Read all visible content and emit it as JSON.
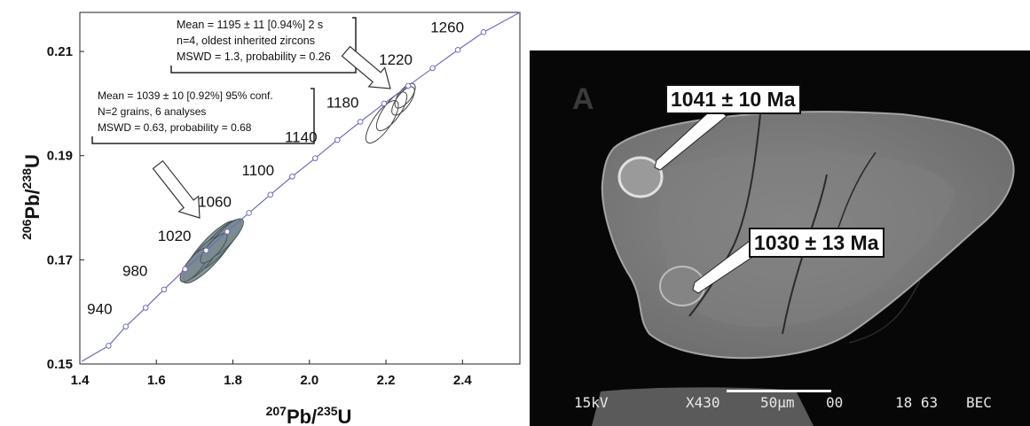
{
  "chart_data": {
    "type": "scatter",
    "title": "",
    "xlabel": "207Pb/235U",
    "ylabel": "206Pb/238U",
    "xlabel_parts": {
      "sup": "207",
      "base": "Pb/",
      "sup2": "235",
      "base2": "U"
    },
    "ylabel_parts": {
      "sup": "206",
      "base": "Pb/",
      "sup2": "238",
      "base2": "U"
    },
    "xlim": [
      1.4,
      2.55
    ],
    "ylim": [
      0.15,
      0.2175
    ],
    "xticks": [
      1.4,
      1.6,
      1.8,
      2.0,
      2.2,
      2.4
    ],
    "xtick_labels": [
      "1.4",
      "1.6",
      "1.8",
      "2.0",
      "2.2",
      "2.4"
    ],
    "yticks": [
      0.15,
      0.17,
      0.19,
      0.21
    ],
    "ytick_labels": [
      "0.15",
      "0.17",
      "0.19",
      "0.21"
    ],
    "grid": false,
    "concordia": {
      "age_labels_ma": [
        "940",
        "980",
        "1020",
        "1060",
        "1100",
        "1140",
        "1180",
        "1220",
        "1260"
      ],
      "markers": [
        {
          "x": 1.475,
          "y": 0.1535
        },
        {
          "x": 1.52,
          "y": 0.1572
        },
        {
          "x": 1.572,
          "y": 0.1608
        },
        {
          "x": 1.62,
          "y": 0.1643
        },
        {
          "x": 1.675,
          "y": 0.1682
        },
        {
          "x": 1.73,
          "y": 0.1718
        },
        {
          "x": 1.785,
          "y": 0.1754
        },
        {
          "x": 1.842,
          "y": 0.179
        },
        {
          "x": 1.898,
          "y": 0.1825
        },
        {
          "x": 1.955,
          "y": 0.186
        },
        {
          "x": 2.015,
          "y": 0.1895
        },
        {
          "x": 2.073,
          "y": 0.193
        },
        {
          "x": 2.133,
          "y": 0.1965
        },
        {
          "x": 2.195,
          "y": 0.2
        },
        {
          "x": 2.258,
          "y": 0.2034
        },
        {
          "x": 2.322,
          "y": 0.2068
        },
        {
          "x": 2.388,
          "y": 0.2103
        },
        {
          "x": 2.455,
          "y": 0.2137
        }
      ]
    },
    "ellipse_groups": [
      {
        "name": "young",
        "fill": "#7c8b8f",
        "ellipses": [
          {
            "cx": 1.74,
            "cy": 0.1715,
            "rx": 0.19,
            "ry": 0.0022,
            "angle_deg": 29
          },
          {
            "cx": 1.76,
            "cy": 0.1728,
            "rx": 0.16,
            "ry": 0.0018,
            "angle_deg": 28
          },
          {
            "cx": 1.72,
            "cy": 0.1703,
            "rx": 0.13,
            "ry": 0.0016,
            "angle_deg": 30
          },
          {
            "cx": 1.78,
            "cy": 0.1742,
            "rx": 0.12,
            "ry": 0.0015,
            "angle_deg": 27
          },
          {
            "cx": 1.7,
            "cy": 0.169,
            "rx": 0.1,
            "ry": 0.0014,
            "angle_deg": 31
          },
          {
            "cx": 1.75,
            "cy": 0.1722,
            "rx": 0.09,
            "ry": 0.0012,
            "angle_deg": 29
          }
        ]
      },
      {
        "name": "old",
        "fill": "none",
        "ellipses": [
          {
            "cx": 2.245,
            "cy": 0.2005,
            "rx": 0.08,
            "ry": 0.0013,
            "angle_deg": 34
          },
          {
            "cx": 2.215,
            "cy": 0.1985,
            "rx": 0.11,
            "ry": 0.0016,
            "angle_deg": 34
          },
          {
            "cx": 2.19,
            "cy": 0.1965,
            "rx": 0.12,
            "ry": 0.0017,
            "angle_deg": 35
          },
          {
            "cx": 2.25,
            "cy": 0.2015,
            "rx": 0.07,
            "ry": 0.0012,
            "angle_deg": 33
          }
        ]
      }
    ],
    "annotations": [
      {
        "name": "old-group",
        "lines": [
          "Mean = 1195 ± 11  [0.94%]  2 s",
          "n=4, oldest inherited zircons",
          "MSWD = 1.3, probability = 0.26"
        ]
      },
      {
        "name": "young-group",
        "lines": [
          "Mean = 1039 ± 10  [0.92%]  95% conf.",
          "N=2 grains, 6 analyses",
          "MSWD = 0.63, probability = 0.68"
        ]
      }
    ]
  },
  "sem": {
    "panel_letter": "A",
    "labels": [
      "1041 ± 10 Ma",
      "1030 ± 13 Ma"
    ],
    "status": {
      "kv": "15kV",
      "mag": "X430",
      "scale": "50μm",
      "seq": "00",
      "id": "18 63",
      "mode": "BEC"
    }
  }
}
